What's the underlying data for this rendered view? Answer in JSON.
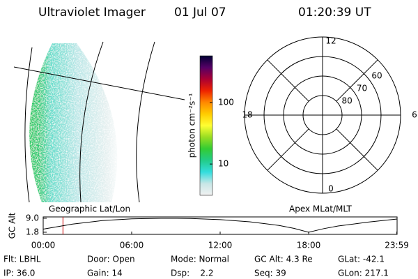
{
  "header": {
    "title": "Ultraviolet Imager",
    "date": "01 Jul 07",
    "time": "01:20:39 UT"
  },
  "colorbar": {
    "label": "photon cm⁻²s⁻¹",
    "scale": "log",
    "lim": [
      3.1,
      575
    ],
    "ticks": [
      10,
      100
    ],
    "colors": [
      "#f2f2f2",
      "#c8e6e6",
      "#33dddd",
      "#22cc88",
      "#33cc33",
      "#99dd22",
      "#ffff33",
      "#ffcc00",
      "#ff8800",
      "#ee2200",
      "#aa0033",
      "#550066",
      "#000033"
    ]
  },
  "polar": {
    "rlim": [
      90,
      50
    ],
    "lat_rings": [
      80,
      70,
      60
    ],
    "mlt_ticks": [
      12,
      6,
      0,
      18
    ]
  },
  "chart_data": {
    "type": "line",
    "ylabel": "GC Alt",
    "annotations": [
      "Geographic Lat/Lon",
      "Apex MLat/MLT"
    ],
    "x": [
      0,
      2,
      4,
      6,
      8,
      9,
      10,
      12,
      14,
      16,
      17,
      18,
      19,
      20,
      22,
      24
    ],
    "series": [
      {
        "name": "GC Alt",
        "color": "#000000",
        "values": [
          3.4,
          6.0,
          7.8,
          8.7,
          9.0,
          9.0,
          8.9,
          8.3,
          7.2,
          5.3,
          3.8,
          1.8,
          3.6,
          5.0,
          7.0,
          8.6
        ]
      }
    ],
    "current_x": 1.34,
    "current_color": "#cc0000",
    "xlim": [
      0,
      24
    ],
    "xticks": [
      {
        "value": 0,
        "label": "00:00"
      },
      {
        "value": 6,
        "label": "06:00"
      },
      {
        "value": 12,
        "label": "12:00"
      },
      {
        "value": 18,
        "label": "18:00"
      },
      {
        "value": 23.98,
        "label": "23:59"
      }
    ],
    "ylim": [
      0.7,
      9.7
    ],
    "yticks": [
      {
        "value": 9,
        "label": "9.0"
      },
      {
        "value": 1.8,
        "label": "1.8"
      }
    ]
  },
  "footer": {
    "rows": [
      [
        "Flt: LBHL",
        "Door: Open",
        "Mode: Normal",
        "GC Alt: 4.3 Re",
        "GLat: -42.1"
      ],
      [
        "IP: 36.0",
        "Gain: 14",
        "Dsp:    2.2",
        "Seq: 39",
        "GLon: 217.1"
      ]
    ]
  }
}
